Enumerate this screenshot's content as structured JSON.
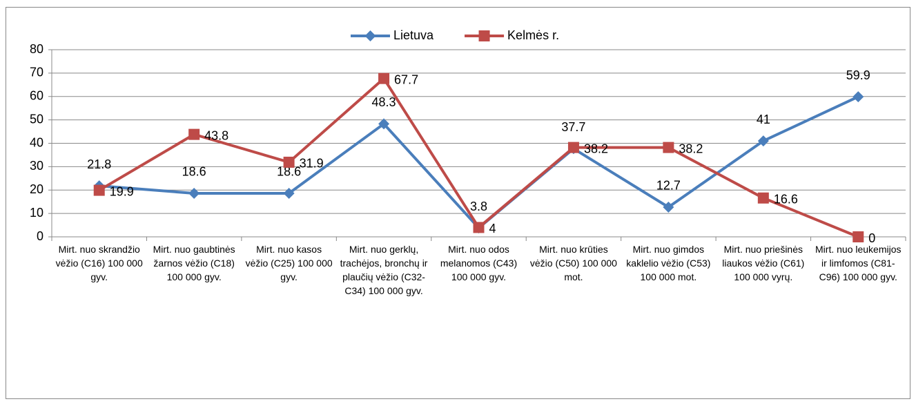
{
  "chart_data": {
    "type": "line",
    "categories": [
      "Mirt. nuo skrandžio vėžio (C16) 100 000 gyv.",
      "Mirt. nuo gaubtinės žarnos vėžio (C18) 100 000 gyv.",
      "Mirt. nuo kasos vėžio (C25) 100 000 gyv.",
      "Mirt. nuo gerklų, trachėjos, bronchų ir plaučių vėžio (C32-C34) 100 000 gyv.",
      "Mirt. nuo odos melanomos (C43) 100 000 gyv.",
      "Mirt. nuo krūties vėžio (C50) 100 000 mot.",
      "Mirt. nuo gimdos kaklelio vėžio (C53) 100 000 mot.",
      "Mirt. nuo priešinės liaukos vėžio (C61) 100 000 vyrų.",
      "Mirt. nuo leukemijos ir limfomos  (C81-C96) 100 000 gyv."
    ],
    "series": [
      {
        "name": "Lietuva",
        "color": "#4a7ebb",
        "marker": "diamond",
        "values": [
          21.8,
          18.6,
          18.6,
          48.3,
          3.8,
          37.7,
          12.7,
          41,
          59.9
        ]
      },
      {
        "name": "Kelmės r.",
        "color": "#be4b48",
        "marker": "square",
        "values": [
          19.9,
          43.8,
          31.9,
          67.7,
          4,
          38.2,
          38.2,
          16.6,
          0
        ]
      }
    ],
    "ylim": [
      0,
      80
    ],
    "yticks": [
      0,
      10,
      20,
      30,
      40,
      50,
      60,
      70,
      80
    ],
    "grid": true,
    "legend": "top"
  }
}
